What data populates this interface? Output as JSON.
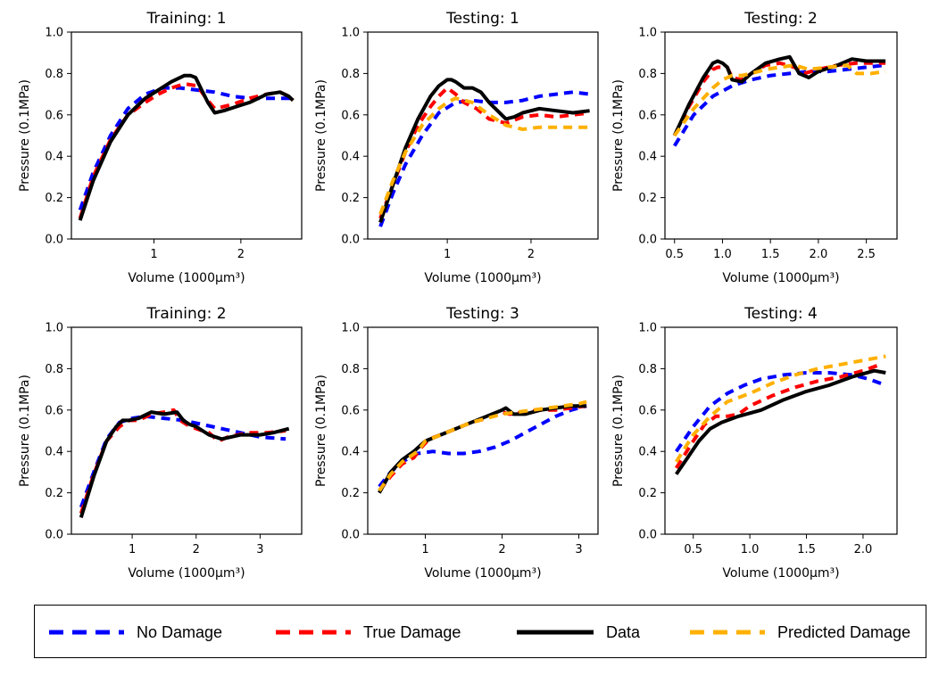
{
  "chart_data": [
    {
      "type": "line",
      "title": "Training: 1",
      "xlabel": "Volume (1000μm³)",
      "ylabel": "Pressure (0.1MPa)",
      "xlim": [
        0.05,
        2.7
      ],
      "ylim": [
        0,
        1
      ],
      "xticks": [
        1,
        2
      ],
      "yticks": [
        0.0,
        0.2,
        0.4,
        0.6,
        0.8,
        1.0
      ],
      "series": [
        {
          "name": "No Damage",
          "x": [
            0.15,
            0.3,
            0.5,
            0.7,
            0.9,
            1.1,
            1.3,
            1.5,
            1.7,
            1.9,
            2.1,
            2.3,
            2.5,
            2.6
          ],
          "y": [
            0.14,
            0.32,
            0.5,
            0.63,
            0.7,
            0.73,
            0.73,
            0.72,
            0.71,
            0.69,
            0.68,
            0.68,
            0.68,
            0.68
          ]
        },
        {
          "name": "True Damage",
          "x": [
            0.15,
            0.3,
            0.5,
            0.7,
            0.9,
            1.05,
            1.2,
            1.35,
            1.5,
            1.6,
            1.7,
            1.9,
            2.1,
            2.3,
            2.45,
            2.55,
            2.6
          ],
          "y": [
            0.1,
            0.3,
            0.48,
            0.6,
            0.66,
            0.7,
            0.73,
            0.75,
            0.74,
            0.68,
            0.63,
            0.65,
            0.68,
            0.7,
            0.71,
            0.69,
            0.67
          ]
        },
        {
          "name": "Data",
          "x": [
            0.15,
            0.3,
            0.5,
            0.7,
            0.9,
            1.05,
            1.2,
            1.35,
            1.42,
            1.48,
            1.55,
            1.62,
            1.7,
            1.8,
            1.95,
            2.1,
            2.3,
            2.45,
            2.55,
            2.6
          ],
          "y": [
            0.09,
            0.28,
            0.47,
            0.6,
            0.68,
            0.72,
            0.76,
            0.79,
            0.79,
            0.78,
            0.72,
            0.66,
            0.61,
            0.62,
            0.64,
            0.66,
            0.7,
            0.71,
            0.69,
            0.67
          ]
        }
      ]
    },
    {
      "type": "line",
      "title": "Testing: 1",
      "xlabel": "Volume (1000μm³)",
      "ylabel": "Pressure (0.1MPa)",
      "xlim": [
        0.05,
        2.8
      ],
      "ylim": [
        0,
        1
      ],
      "xticks": [
        1,
        2
      ],
      "yticks": [
        0.0,
        0.2,
        0.4,
        0.6,
        0.8,
        1.0
      ],
      "series": [
        {
          "name": "No Damage",
          "x": [
            0.2,
            0.35,
            0.5,
            0.7,
            0.9,
            1.1,
            1.3,
            1.5,
            1.7,
            1.9,
            2.1,
            2.3,
            2.5,
            2.7
          ],
          "y": [
            0.06,
            0.22,
            0.36,
            0.5,
            0.61,
            0.66,
            0.67,
            0.66,
            0.66,
            0.67,
            0.69,
            0.7,
            0.71,
            0.7
          ]
        },
        {
          "name": "True Damage",
          "x": [
            0.2,
            0.35,
            0.5,
            0.65,
            0.8,
            0.9,
            1.0,
            1.1,
            1.2,
            1.35,
            1.5,
            1.7,
            1.9,
            2.1,
            2.3,
            2.5,
            2.7
          ],
          "y": [
            0.1,
            0.26,
            0.42,
            0.55,
            0.64,
            0.69,
            0.73,
            0.7,
            0.66,
            0.63,
            0.58,
            0.56,
            0.59,
            0.6,
            0.59,
            0.6,
            0.61
          ]
        },
        {
          "name": "Data",
          "x": [
            0.2,
            0.35,
            0.5,
            0.65,
            0.8,
            0.9,
            1.0,
            1.05,
            1.1,
            1.2,
            1.3,
            1.4,
            1.5,
            1.6,
            1.7,
            1.8,
            1.9,
            2.1,
            2.3,
            2.5,
            2.7
          ],
          "y": [
            0.08,
            0.26,
            0.44,
            0.58,
            0.69,
            0.74,
            0.77,
            0.77,
            0.76,
            0.73,
            0.73,
            0.71,
            0.66,
            0.62,
            0.58,
            0.59,
            0.61,
            0.63,
            0.62,
            0.61,
            0.62
          ]
        },
        {
          "name": "Predicted Damage",
          "x": [
            0.2,
            0.35,
            0.5,
            0.7,
            0.9,
            1.0,
            1.1,
            1.3,
            1.5,
            1.7,
            1.9,
            2.1,
            2.3,
            2.5,
            2.7
          ],
          "y": [
            0.12,
            0.28,
            0.42,
            0.55,
            0.63,
            0.66,
            0.68,
            0.66,
            0.6,
            0.55,
            0.53,
            0.54,
            0.54,
            0.54,
            0.54
          ]
        }
      ]
    },
    {
      "type": "line",
      "title": "Testing: 2",
      "xlabel": "Volume (1000μm³)",
      "ylabel": "Pressure (0.1MPa)",
      "xlim": [
        0.4,
        2.82
      ],
      "ylim": [
        0,
        1
      ],
      "xticks": [
        0.5,
        1.0,
        1.5,
        2.0,
        2.5
      ],
      "yticks": [
        0.0,
        0.2,
        0.4,
        0.6,
        0.8,
        1.0
      ],
      "series": [
        {
          "name": "No Damage",
          "x": [
            0.5,
            0.7,
            0.9,
            1.1,
            1.3,
            1.5,
            1.7,
            1.9,
            2.1,
            2.3,
            2.5,
            2.7
          ],
          "y": [
            0.45,
            0.6,
            0.69,
            0.74,
            0.77,
            0.79,
            0.8,
            0.81,
            0.81,
            0.82,
            0.83,
            0.84
          ]
        },
        {
          "name": "True Damage",
          "x": [
            0.5,
            0.65,
            0.8,
            0.9,
            0.95,
            1.05,
            1.1,
            1.2,
            1.3,
            1.45,
            1.6,
            1.75,
            1.85,
            2.0,
            2.2,
            2.4,
            2.55,
            2.7
          ],
          "y": [
            0.5,
            0.64,
            0.76,
            0.82,
            0.83,
            0.83,
            0.78,
            0.77,
            0.8,
            0.84,
            0.85,
            0.83,
            0.8,
            0.82,
            0.84,
            0.85,
            0.85,
            0.85
          ]
        },
        {
          "name": "Data",
          "x": [
            0.5,
            0.65,
            0.8,
            0.9,
            0.95,
            1.0,
            1.05,
            1.1,
            1.2,
            1.3,
            1.45,
            1.6,
            1.7,
            1.8,
            1.9,
            2.0,
            2.2,
            2.35,
            2.5,
            2.7
          ],
          "y": [
            0.5,
            0.65,
            0.78,
            0.85,
            0.86,
            0.85,
            0.83,
            0.77,
            0.76,
            0.8,
            0.85,
            0.87,
            0.88,
            0.8,
            0.78,
            0.81,
            0.84,
            0.87,
            0.86,
            0.86
          ]
        },
        {
          "name": "Predicted Damage",
          "x": [
            0.5,
            0.7,
            0.9,
            1.0,
            1.1,
            1.2,
            1.3,
            1.45,
            1.6,
            1.75,
            1.9,
            2.1,
            2.3,
            2.4,
            2.55,
            2.7
          ],
          "y": [
            0.5,
            0.63,
            0.73,
            0.77,
            0.79,
            0.79,
            0.8,
            0.82,
            0.83,
            0.84,
            0.82,
            0.83,
            0.84,
            0.8,
            0.8,
            0.81
          ]
        }
      ]
    },
    {
      "type": "line",
      "title": "Training: 2",
      "xlabel": "Volume (1000μm³)",
      "ylabel": "Pressure (0.1MPa)",
      "xlim": [
        0.05,
        3.65
      ],
      "ylim": [
        0,
        1
      ],
      "xticks": [
        1,
        2,
        3
      ],
      "yticks": [
        0.0,
        0.2,
        0.4,
        0.6,
        0.8,
        1.0
      ],
      "series": [
        {
          "name": "No Damage",
          "x": [
            0.2,
            0.4,
            0.6,
            0.8,
            1.0,
            1.2,
            1.5,
            1.8,
            2.1,
            2.4,
            2.7,
            3.0,
            3.4
          ],
          "y": [
            0.13,
            0.3,
            0.46,
            0.54,
            0.56,
            0.57,
            0.56,
            0.55,
            0.53,
            0.51,
            0.49,
            0.47,
            0.46
          ]
        },
        {
          "name": "True Damage",
          "x": [
            0.2,
            0.4,
            0.6,
            0.8,
            0.95,
            1.1,
            1.3,
            1.5,
            1.65,
            1.75,
            1.85,
            2.0,
            2.2,
            2.35,
            2.5,
            2.8,
            3.1,
            3.4
          ],
          "y": [
            0.1,
            0.29,
            0.45,
            0.52,
            0.55,
            0.55,
            0.58,
            0.59,
            0.6,
            0.55,
            0.53,
            0.51,
            0.49,
            0.45,
            0.47,
            0.49,
            0.49,
            0.5
          ]
        },
        {
          "name": "Data",
          "x": [
            0.2,
            0.4,
            0.6,
            0.75,
            0.85,
            0.95,
            1.1,
            1.3,
            1.5,
            1.7,
            1.8,
            1.9,
            2.0,
            2.1,
            2.2,
            2.4,
            2.7,
            3.0,
            3.2,
            3.45
          ],
          "y": [
            0.08,
            0.28,
            0.45,
            0.52,
            0.55,
            0.55,
            0.56,
            0.59,
            0.58,
            0.59,
            0.55,
            0.53,
            0.52,
            0.5,
            0.48,
            0.46,
            0.48,
            0.48,
            0.49,
            0.51
          ]
        }
      ]
    },
    {
      "type": "line",
      "title": "Testing: 3",
      "xlabel": "Volume (1000μm³)",
      "ylabel": "Pressure (0.1MPa)",
      "xlim": [
        0.25,
        3.25
      ],
      "ylim": [
        0,
        1
      ],
      "xticks": [
        1,
        2,
        3
      ],
      "yticks": [
        0.0,
        0.2,
        0.4,
        0.6,
        0.8,
        1.0
      ],
      "series": [
        {
          "name": "No Damage",
          "x": [
            0.4,
            0.55,
            0.7,
            0.9,
            1.1,
            1.3,
            1.5,
            1.7,
            1.9,
            2.1,
            2.3,
            2.5,
            2.7,
            2.9,
            3.1
          ],
          "y": [
            0.23,
            0.3,
            0.35,
            0.39,
            0.4,
            0.39,
            0.39,
            0.4,
            0.42,
            0.45,
            0.49,
            0.53,
            0.57,
            0.6,
            0.62
          ]
        },
        {
          "name": "True Damage",
          "x": [
            0.4,
            0.55,
            0.7,
            0.85,
            0.95,
            1.05,
            1.2,
            1.4,
            1.6,
            1.8,
            2.0,
            2.1,
            2.3,
            2.5,
            2.7,
            2.9,
            3.1
          ],
          "y": [
            0.21,
            0.28,
            0.34,
            0.37,
            0.42,
            0.46,
            0.48,
            0.51,
            0.54,
            0.56,
            0.59,
            0.58,
            0.59,
            0.6,
            0.6,
            0.61,
            0.62
          ]
        },
        {
          "name": "Data",
          "x": [
            0.4,
            0.55,
            0.7,
            0.85,
            1.0,
            1.2,
            1.4,
            1.6,
            1.8,
            2.0,
            2.05,
            2.15,
            2.3,
            2.5,
            2.7,
            2.9,
            3.1
          ],
          "y": [
            0.2,
            0.3,
            0.36,
            0.4,
            0.45,
            0.48,
            0.51,
            0.54,
            0.57,
            0.6,
            0.61,
            0.58,
            0.58,
            0.6,
            0.61,
            0.62,
            0.62
          ]
        },
        {
          "name": "Predicted Damage",
          "x": [
            0.4,
            0.55,
            0.7,
            0.9,
            1.0,
            1.2,
            1.4,
            1.6,
            1.8,
            2.0,
            2.2,
            2.4,
            2.6,
            2.8,
            3.0,
            3.1
          ],
          "y": [
            0.21,
            0.29,
            0.35,
            0.4,
            0.45,
            0.48,
            0.51,
            0.54,
            0.56,
            0.58,
            0.59,
            0.6,
            0.61,
            0.62,
            0.63,
            0.64
          ]
        }
      ]
    },
    {
      "type": "line",
      "title": "Testing: 4",
      "xlabel": "Volume (1000μm³)",
      "ylabel": "Pressure (0.1MPa)",
      "xlim": [
        0.25,
        2.3
      ],
      "ylim": [
        0,
        1
      ],
      "xticks": [
        0.5,
        1.0,
        1.5,
        2.0
      ],
      "yticks": [
        0.0,
        0.2,
        0.4,
        0.6,
        0.8,
        1.0
      ],
      "series": [
        {
          "name": "No Damage",
          "x": [
            0.35,
            0.5,
            0.65,
            0.8,
            0.95,
            1.1,
            1.3,
            1.5,
            1.7,
            1.9,
            2.05,
            2.2
          ],
          "y": [
            0.4,
            0.52,
            0.62,
            0.68,
            0.72,
            0.75,
            0.77,
            0.78,
            0.78,
            0.77,
            0.75,
            0.72
          ]
        },
        {
          "name": "True Damage",
          "x": [
            0.35,
            0.5,
            0.6,
            0.7,
            0.8,
            0.9,
            1.0,
            1.2,
            1.4,
            1.6,
            1.8,
            2.0,
            2.15
          ],
          "y": [
            0.32,
            0.45,
            0.53,
            0.57,
            0.57,
            0.58,
            0.62,
            0.67,
            0.71,
            0.74,
            0.76,
            0.79,
            0.82
          ]
        },
        {
          "name": "Data",
          "x": [
            0.35,
            0.45,
            0.55,
            0.65,
            0.75,
            0.9,
            1.1,
            1.3,
            1.5,
            1.7,
            1.9,
            2.1,
            2.2
          ],
          "y": [
            0.29,
            0.37,
            0.45,
            0.51,
            0.54,
            0.57,
            0.6,
            0.65,
            0.69,
            0.72,
            0.76,
            0.79,
            0.78
          ]
        },
        {
          "name": "Predicted Damage",
          "x": [
            0.35,
            0.5,
            0.65,
            0.8,
            1.0,
            1.2,
            1.4,
            1.6,
            1.8,
            2.0,
            2.2
          ],
          "y": [
            0.35,
            0.48,
            0.57,
            0.64,
            0.68,
            0.73,
            0.77,
            0.8,
            0.82,
            0.84,
            0.86
          ]
        }
      ]
    }
  ],
  "legend": {
    "placement": "bottom",
    "items": [
      {
        "label": "No Damage",
        "color": "#0000ff",
        "style": "dashed"
      },
      {
        "label": "True Damage",
        "color": "#ff0000",
        "style": "dashed"
      },
      {
        "label": "Data",
        "color": "#000000",
        "style": "solid"
      },
      {
        "label": "Predicted Damage",
        "color": "#ffb000",
        "style": "dashed"
      }
    ]
  },
  "series_styles": {
    "No Damage": {
      "color": "#0000ff",
      "dash": "10,7"
    },
    "True Damage": {
      "color": "#ff0000",
      "dash": "10,7"
    },
    "Data": {
      "color": "#000000",
      "dash": ""
    },
    "Predicted Damage": {
      "color": "#ffb000",
      "dash": "10,7"
    }
  }
}
